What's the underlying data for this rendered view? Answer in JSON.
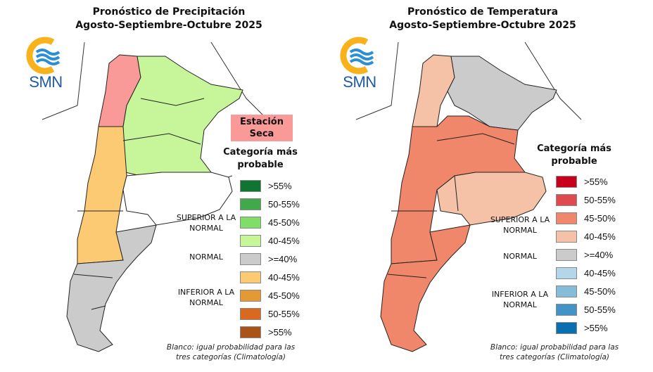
{
  "precipitation": {
    "title_line1": "Pronóstico de Precipitación",
    "title_line2": "Agosto-Septiembre-Octubre 2025",
    "logo_text": "SMN",
    "dry_season_label": "Estación Seca",
    "legend_title": "Categoría más probable",
    "groups": {
      "above": "SUPERIOR A LA NORMAL",
      "normal": "NORMAL",
      "below": "INFERIOR A LA NORMAL"
    },
    "legend": [
      {
        "label": ">55%",
        "color": "#107530"
      },
      {
        "label": "50-55%",
        "color": "#42a84c"
      },
      {
        "label": "45-50%",
        "color": "#80dd68"
      },
      {
        "label": "40-45%",
        "color": "#c6f59a"
      },
      {
        "label": ">=40%",
        "color": "#cbcbcb"
      },
      {
        "label": "40-45%",
        "color": "#fdca74"
      },
      {
        "label": "45-50%",
        "color": "#e39a35"
      },
      {
        "label": "50-55%",
        "color": "#d9691e"
      },
      {
        "label": ">55%",
        "color": "#ab5418"
      }
    ],
    "note": "Blanco: igual probabilidad para las tres categorías (Climatología)"
  },
  "temperature": {
    "title_line1": "Pronóstico de Temperatura",
    "title_line2": "Agosto-Septiembre-Octubre 2025",
    "logo_text": "SMN",
    "legend_title": "Categoría más probable",
    "groups": {
      "above": "SUPERIOR A LA NORMAL",
      "normal": "NORMAL",
      "below": "INFERIOR A LA NORMAL"
    },
    "legend": [
      {
        "label": ">55%",
        "color": "#c8001e"
      },
      {
        "label": "50-55%",
        "color": "#df4a4e"
      },
      {
        "label": "45-50%",
        "color": "#f0876a"
      },
      {
        "label": "40-45%",
        "color": "#f5c2a8"
      },
      {
        "label": ">=40%",
        "color": "#cbcbcb"
      },
      {
        "label": "40-45%",
        "color": "#b3d7e8"
      },
      {
        "label": "45-50%",
        "color": "#85bcda"
      },
      {
        "label": "50-55%",
        "color": "#4394c6"
      },
      {
        "label": ">55%",
        "color": "#0a6fb0"
      }
    ],
    "note": "Blanco: igual probabilidad para las tres categorías (Climatología)"
  }
}
